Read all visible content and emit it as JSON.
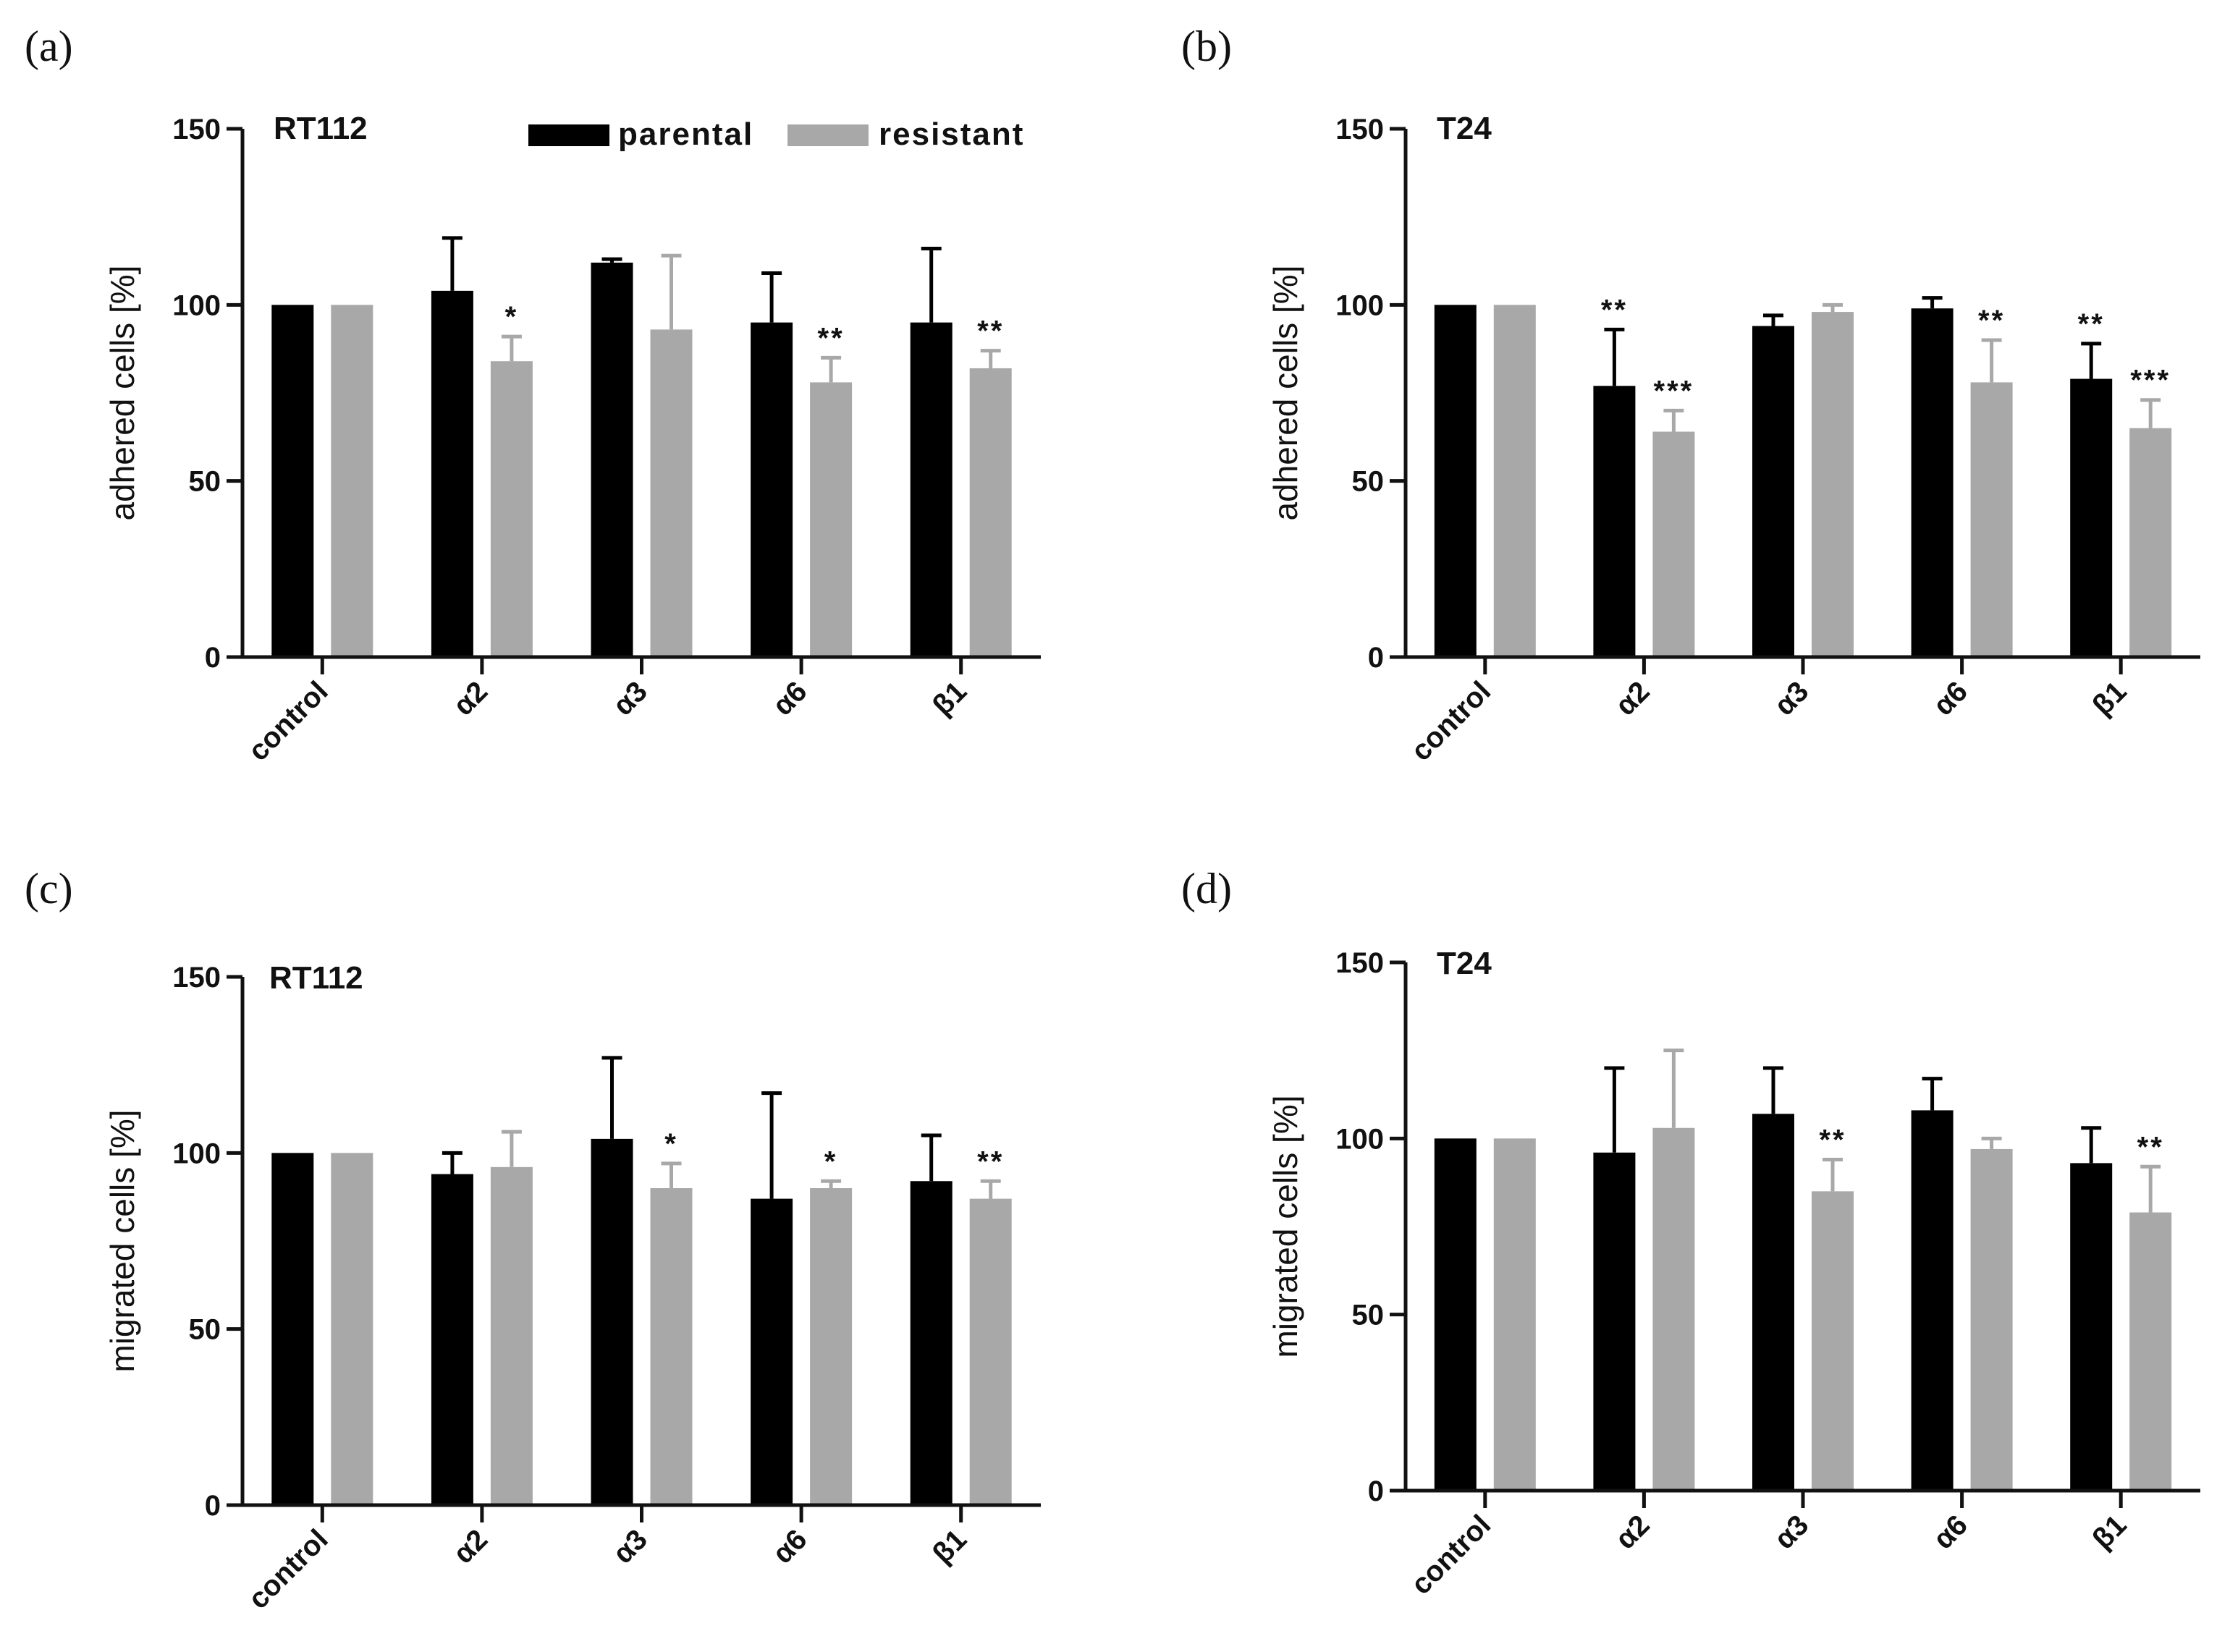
{
  "panels": [
    {
      "letter": "(a)"
    },
    {
      "letter": "(b)"
    },
    {
      "letter": "(c)"
    },
    {
      "letter": "(d)"
    }
  ],
  "legend": {
    "series": [
      {
        "name": "parental",
        "color": "#000000"
      },
      {
        "name": "resistant",
        "color": "#a8a8a8"
      }
    ]
  },
  "chart_data": [
    {
      "type": "bar",
      "title": "RT112",
      "ylabel": "adhered cells [%]",
      "xlabel": "",
      "ylim": [
        0,
        150
      ],
      "yticks": [
        0,
        50,
        100,
        150
      ],
      "categories": [
        "control",
        "α2",
        "α3",
        "α6",
        "β1"
      ],
      "series": [
        {
          "name": "parental",
          "color": "#000000",
          "values": [
            100,
            104,
            112,
            95,
            95
          ],
          "errors": [
            0,
            15,
            1,
            14,
            21
          ],
          "significance": [
            "",
            "",
            "",
            "",
            ""
          ]
        },
        {
          "name": "resistant",
          "color": "#a8a8a8",
          "values": [
            100,
            84,
            93,
            78,
            82
          ],
          "errors": [
            0,
            7,
            21,
            7,
            5
          ],
          "significance": [
            "",
            "*",
            "",
            "**",
            "**"
          ]
        }
      ]
    },
    {
      "type": "bar",
      "title": "T24",
      "ylabel": "adhered cells [%]",
      "xlabel": "",
      "ylim": [
        0,
        150
      ],
      "yticks": [
        0,
        50,
        100,
        150
      ],
      "categories": [
        "control",
        "α2",
        "α3",
        "α6",
        "β1"
      ],
      "series": [
        {
          "name": "parental",
          "color": "#000000",
          "values": [
            100,
            77,
            94,
            99,
            79
          ],
          "errors": [
            0,
            16,
            3,
            3,
            10
          ],
          "significance": [
            "",
            "**",
            "",
            "",
            "**"
          ]
        },
        {
          "name": "resistant",
          "color": "#a8a8a8",
          "values": [
            100,
            64,
            98,
            78,
            65
          ],
          "errors": [
            0,
            6,
            2,
            12,
            8
          ],
          "significance": [
            "",
            "***",
            "",
            "**",
            "***"
          ]
        }
      ]
    },
    {
      "type": "bar",
      "title": "RT112",
      "ylabel": "migrated cells [%]",
      "xlabel": "",
      "ylim": [
        0,
        150
      ],
      "yticks": [
        0,
        50,
        100,
        150
      ],
      "categories": [
        "control",
        "α2",
        "α3",
        "α6",
        "β1"
      ],
      "series": [
        {
          "name": "parental",
          "color": "#000000",
          "values": [
            100,
            94,
            104,
            87,
            92
          ],
          "errors": [
            0,
            6,
            23,
            30,
            13
          ],
          "significance": [
            "",
            "",
            "",
            "",
            ""
          ]
        },
        {
          "name": "resistant",
          "color": "#a8a8a8",
          "values": [
            100,
            96,
            90,
            90,
            87
          ],
          "errors": [
            0,
            10,
            7,
            2,
            5
          ],
          "significance": [
            "",
            "",
            "*",
            "*",
            "**"
          ]
        }
      ]
    },
    {
      "type": "bar",
      "title": "T24",
      "ylabel": "migrated cells [%]",
      "xlabel": "",
      "ylim": [
        0,
        150
      ],
      "yticks": [
        0,
        50,
        100,
        150
      ],
      "categories": [
        "control",
        "α2",
        "α3",
        "α6",
        "β1"
      ],
      "series": [
        {
          "name": "parental",
          "color": "#000000",
          "values": [
            100,
            96,
            107,
            108,
            93
          ],
          "errors": [
            0,
            24,
            13,
            9,
            10
          ],
          "significance": [
            "",
            "",
            "",
            "",
            ""
          ]
        },
        {
          "name": "resistant",
          "color": "#a8a8a8",
          "values": [
            100,
            103,
            85,
            97,
            79
          ],
          "errors": [
            0,
            22,
            9,
            3,
            13
          ],
          "significance": [
            "",
            "",
            "**",
            "",
            "**"
          ]
        }
      ]
    }
  ]
}
